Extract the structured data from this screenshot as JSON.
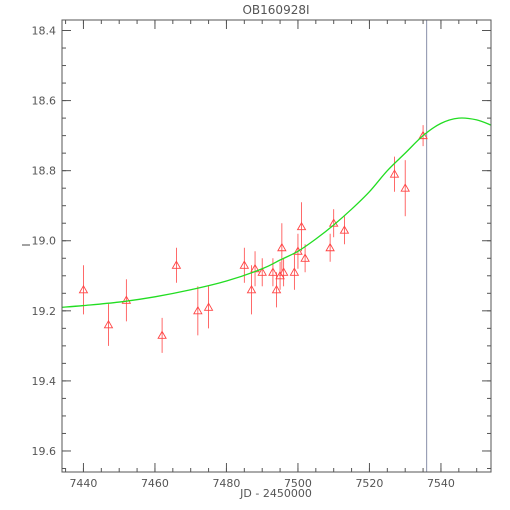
{
  "chart_data": {
    "type": "scatter",
    "title": "OB160928I",
    "xlabel": "JD - 2450000",
    "ylabel": "I",
    "xlim": [
      7434,
      7554
    ],
    "ylim": [
      19.66,
      18.37
    ],
    "y_inverted": true,
    "x_ticks": [
      7440,
      7460,
      7480,
      7500,
      7520,
      7540
    ],
    "y_ticks": [
      18.4,
      18.6,
      18.8,
      19.0,
      19.2,
      19.4,
      19.6
    ],
    "y_tick_labels": [
      "18.4",
      "18.6",
      "18.8",
      "19.0",
      "19.2",
      "19.4",
      "19.6"
    ],
    "x_minor_step": 5,
    "y_minor_step": 0.05,
    "marker": "triangle-open",
    "colors": {
      "points": "#ff4444",
      "model": "#22dd22",
      "vline": "#8890aa",
      "axes": "#555555"
    },
    "vertical_line_x": 7536,
    "points": [
      {
        "x": 7440,
        "y": 19.14,
        "err": 0.07
      },
      {
        "x": 7447,
        "y": 19.24,
        "err": 0.06
      },
      {
        "x": 7452,
        "y": 19.17,
        "err": 0.06
      },
      {
        "x": 7462,
        "y": 19.27,
        "err": 0.05
      },
      {
        "x": 7466,
        "y": 19.07,
        "err": 0.05
      },
      {
        "x": 7472,
        "y": 19.2,
        "err": 0.07
      },
      {
        "x": 7475,
        "y": 19.19,
        "err": 0.06
      },
      {
        "x": 7485,
        "y": 19.07,
        "err": 0.05
      },
      {
        "x": 7487,
        "y": 19.14,
        "err": 0.07
      },
      {
        "x": 7488,
        "y": 19.08,
        "err": 0.05
      },
      {
        "x": 7490,
        "y": 19.09,
        "err": 0.04
      },
      {
        "x": 7493,
        "y": 19.09,
        "err": 0.04
      },
      {
        "x": 7494,
        "y": 19.14,
        "err": 0.05
      },
      {
        "x": 7495,
        "y": 19.1,
        "err": 0.04
      },
      {
        "x": 7495.5,
        "y": 19.02,
        "err": 0.07
      },
      {
        "x": 7496,
        "y": 19.09,
        "err": 0.04
      },
      {
        "x": 7499,
        "y": 19.09,
        "err": 0.05
      },
      {
        "x": 7500,
        "y": 19.03,
        "err": 0.05
      },
      {
        "x": 7501,
        "y": 18.96,
        "err": 0.07
      },
      {
        "x": 7502,
        "y": 19.05,
        "err": 0.04
      },
      {
        "x": 7509,
        "y": 19.02,
        "err": 0.04
      },
      {
        "x": 7510,
        "y": 18.95,
        "err": 0.04
      },
      {
        "x": 7513,
        "y": 18.97,
        "err": 0.04
      },
      {
        "x": 7527,
        "y": 18.81,
        "err": 0.05
      },
      {
        "x": 7530,
        "y": 18.85,
        "err": 0.08
      },
      {
        "x": 7535,
        "y": 18.7,
        "err": 0.03
      }
    ],
    "model_curve": {
      "x": [
        7434,
        7440,
        7450,
        7460,
        7470,
        7480,
        7490,
        7495,
        7500,
        7505,
        7510,
        7515,
        7520,
        7525,
        7530,
        7535,
        7540,
        7545,
        7550,
        7554
      ],
      "y": [
        19.19,
        19.185,
        19.175,
        19.16,
        19.14,
        19.115,
        19.08,
        19.055,
        19.03,
        18.995,
        18.955,
        18.91,
        18.86,
        18.8,
        18.75,
        18.7,
        18.665,
        18.65,
        18.655,
        18.67
      ]
    }
  }
}
